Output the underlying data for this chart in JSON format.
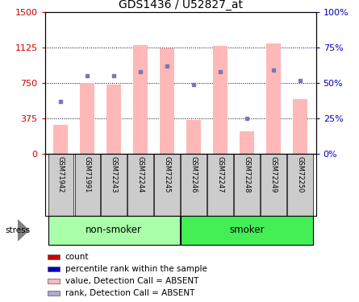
{
  "title": "GDS1436 / U52827_at",
  "samples": [
    "GSM71942",
    "GSM71991",
    "GSM72243",
    "GSM72244",
    "GSM72245",
    "GSM72246",
    "GSM72247",
    "GSM72248",
    "GSM72249",
    "GSM72250"
  ],
  "bar_values": [
    310,
    750,
    730,
    1155,
    1120,
    360,
    1145,
    240,
    1165,
    580
  ],
  "dot_pct": [
    37,
    55,
    55,
    58,
    62,
    49,
    58,
    25,
    59,
    52
  ],
  "ylim_left": [
    0,
    1500
  ],
  "ylim_right": [
    0,
    100
  ],
  "yticks_left": [
    0,
    375,
    750,
    1125,
    1500
  ],
  "yticks_right": [
    0,
    25,
    50,
    75,
    100
  ],
  "ytick_labels_left": [
    "0",
    "375",
    "750",
    "1125",
    "1500"
  ],
  "ytick_labels_right": [
    "0%",
    "25%",
    "50%",
    "75%",
    "100%"
  ],
  "bar_color": "#FFB8B8",
  "dot_color": "#7777BB",
  "left_axis_color": "#CC0000",
  "right_axis_color": "#0000BB",
  "nonsmoker_color": "#AAFFAA",
  "smoker_color": "#44EE55",
  "tick_bg_color": "#CCCCCC",
  "stress_label": "stress",
  "legend_colors": [
    "#CC0000",
    "#0000BB",
    "#FFB8B8",
    "#AAAACC"
  ],
  "legend_labels": [
    "count",
    "percentile rank within the sample",
    "value, Detection Call = ABSENT",
    "rank, Detection Call = ABSENT"
  ],
  "fig_width": 4.45,
  "fig_height": 3.75,
  "dpi": 100
}
